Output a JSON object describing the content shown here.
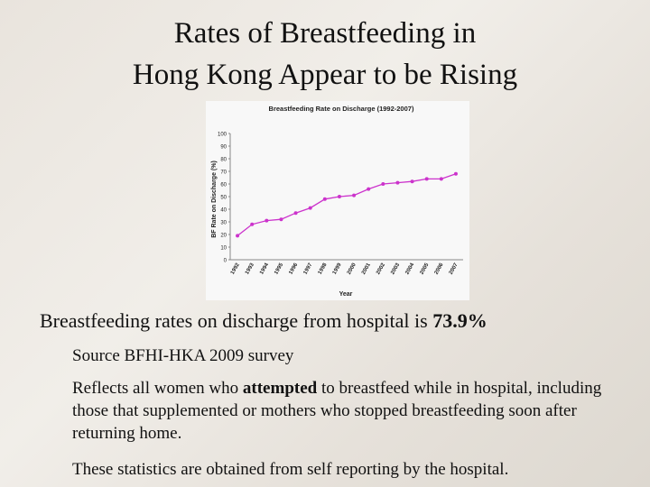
{
  "slide": {
    "title": [
      "Rates of Breastfeeding in",
      "Hong Kong Appear to be Rising"
    ],
    "main": [
      "Breastfeeding rates on discharge from hospital is ",
      "73.9%"
    ],
    "bullets": [
      [
        "Source BFHI-HKA 2009 survey"
      ],
      [
        "Reflects all women who ",
        "attempted",
        " to breastfeed while in hospital, including those that supplemented or mothers who stopped breastfeeding soon after returning home."
      ],
      [
        "These statistics are obtained from self reporting by the hospital."
      ]
    ]
  },
  "chart_data": {
    "type": "line",
    "title": "Breastfeeding Rate on Discharge (1992-2007)",
    "x_label": "Year",
    "y_label": "BF Rate on Discharge (%)",
    "categories": [
      "1992",
      "1993",
      "1994",
      "1995",
      "1996",
      "1997",
      "1998",
      "1999",
      "2000",
      "2001",
      "2002",
      "2003",
      "2004",
      "2005",
      "2006",
      "2007"
    ],
    "series": [
      {
        "name": "BF Rate on Discharge",
        "color": "#cc33cc",
        "values": [
          19,
          28,
          31,
          32,
          37,
          41,
          48,
          50,
          51,
          56,
          60,
          61,
          62,
          64,
          64,
          68
        ]
      }
    ],
    "ylim": [
      0,
      100
    ],
    "yticks": [
      0,
      10,
      20,
      30,
      40,
      50,
      60,
      70,
      80,
      90,
      100
    ],
    "grid": false
  }
}
